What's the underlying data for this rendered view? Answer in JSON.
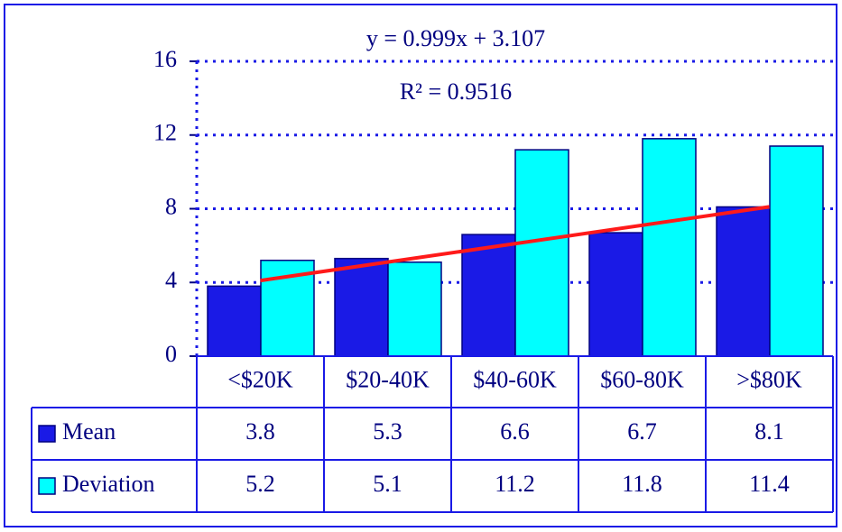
{
  "chart_data": {
    "type": "bar",
    "categories": [
      "<$20K",
      "$20-40K",
      "$40-60K",
      "$60-80K",
      ">$80K"
    ],
    "series": [
      {
        "name": "Mean",
        "color": "#1a1ae6",
        "values": [
          3.8,
          5.3,
          6.6,
          6.7,
          8.1
        ]
      },
      {
        "name": "Deviation",
        "color": "#00ffff",
        "values": [
          5.2,
          5.1,
          11.2,
          11.8,
          11.4
        ]
      }
    ],
    "ylim": [
      0,
      16
    ],
    "yticks": [
      0,
      4,
      8,
      12,
      16
    ],
    "grid": true,
    "trendline": {
      "equation": "y = 0.999x + 3.107",
      "r_squared_label": "R² = 0.9516",
      "slope": 0.999,
      "intercept": 3.107,
      "color": "#ff1a1a"
    }
  }
}
